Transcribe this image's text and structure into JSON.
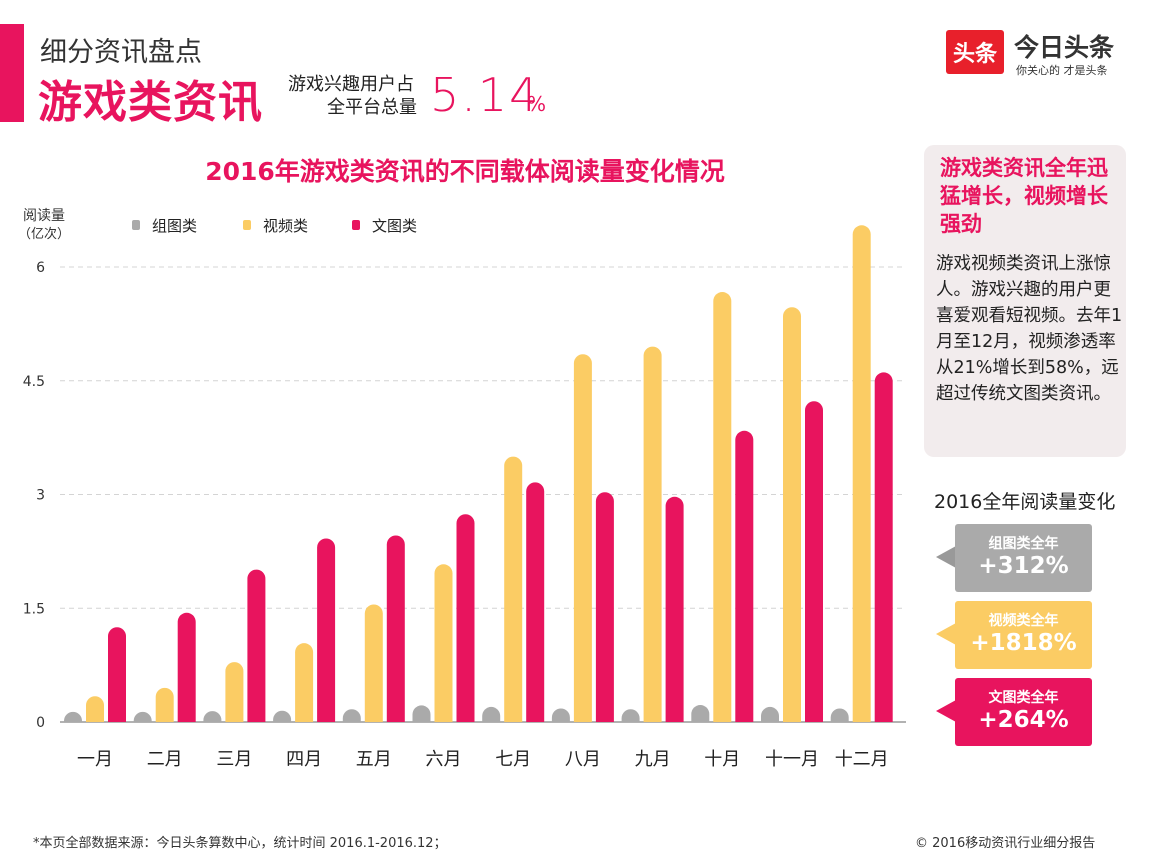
{
  "header": {
    "subtitle": "细分资讯盘点",
    "title": "游戏类资讯",
    "share_label_line1": "游戏兴趣用户占",
    "share_label_line2": "全平台总量",
    "share_value": "5.14",
    "share_unit": "%"
  },
  "logo": {
    "box_text": "头条",
    "name": "今日头条",
    "slogan": "你关心的 才是头条"
  },
  "chart_title": "2016年游戏类资讯的不同载体阅读量变化情况",
  "chart_data": {
    "type": "bar",
    "title": "2016年游戏类资讯的不同载体阅读量变化情况",
    "ylabel": "阅读量",
    "yunit": "（亿次）",
    "ylim": [
      0,
      6
    ],
    "yticks": [
      "0",
      "1.5",
      "3",
      "4.5",
      "6"
    ],
    "ytick_values": [
      0,
      1.5,
      3,
      4.5,
      6
    ],
    "grid": true,
    "legend_position": "top-left",
    "categories": [
      "一月",
      "二月",
      "三月",
      "四月",
      "五月",
      "六月",
      "七月",
      "八月",
      "九月",
      "十月",
      "十一月",
      "十二月"
    ],
    "series": [
      {
        "name": "组图类",
        "color": "#aaaaaa",
        "values": [
          0.03,
          0.03,
          0.05,
          0.06,
          0.1,
          0.2,
          0.16,
          0.12,
          0.1,
          0.21,
          0.16,
          0.12
        ]
      },
      {
        "name": "视频类",
        "color": "#fbcc64",
        "values": [
          0.34,
          0.45,
          0.79,
          1.04,
          1.55,
          2.08,
          3.5,
          4.85,
          4.95,
          5.67,
          5.47,
          6.55
        ]
      },
      {
        "name": "文图类",
        "color": "#e8145e",
        "values": [
          1.25,
          1.44,
          2.01,
          2.42,
          2.46,
          2.74,
          3.16,
          3.03,
          2.97,
          3.84,
          4.23,
          4.61
        ]
      }
    ]
  },
  "sidebar": {
    "title": "游戏类资讯全年迅猛增长，视频增长强劲",
    "body": "游戏视频类资讯上涨惊人。游戏兴趣的用户更喜爱观看短视频。去年1月至12月，视频渗透率从21%增长到58%，远超过传统文图类资讯。"
  },
  "annual_change": {
    "heading": "2016全年阅读量变化",
    "items": [
      {
        "label": "组图类全年",
        "value": "+312%",
        "color": "#aaaaaa",
        "arrow_color": "#999999"
      },
      {
        "label": "视频类全年",
        "value": "+1818%",
        "color": "#fbcc64",
        "arrow_color": "#fbcc64"
      },
      {
        "label": "文图类全年",
        "value": "+264%",
        "color": "#e8145e",
        "arrow_color": "#e8145e"
      }
    ]
  },
  "footer": {
    "source": "*本页全部数据来源：今日头条算数中心，统计时间 2016.1-2016.12；",
    "copyright": "© 2016移动资讯行业细分报告"
  }
}
